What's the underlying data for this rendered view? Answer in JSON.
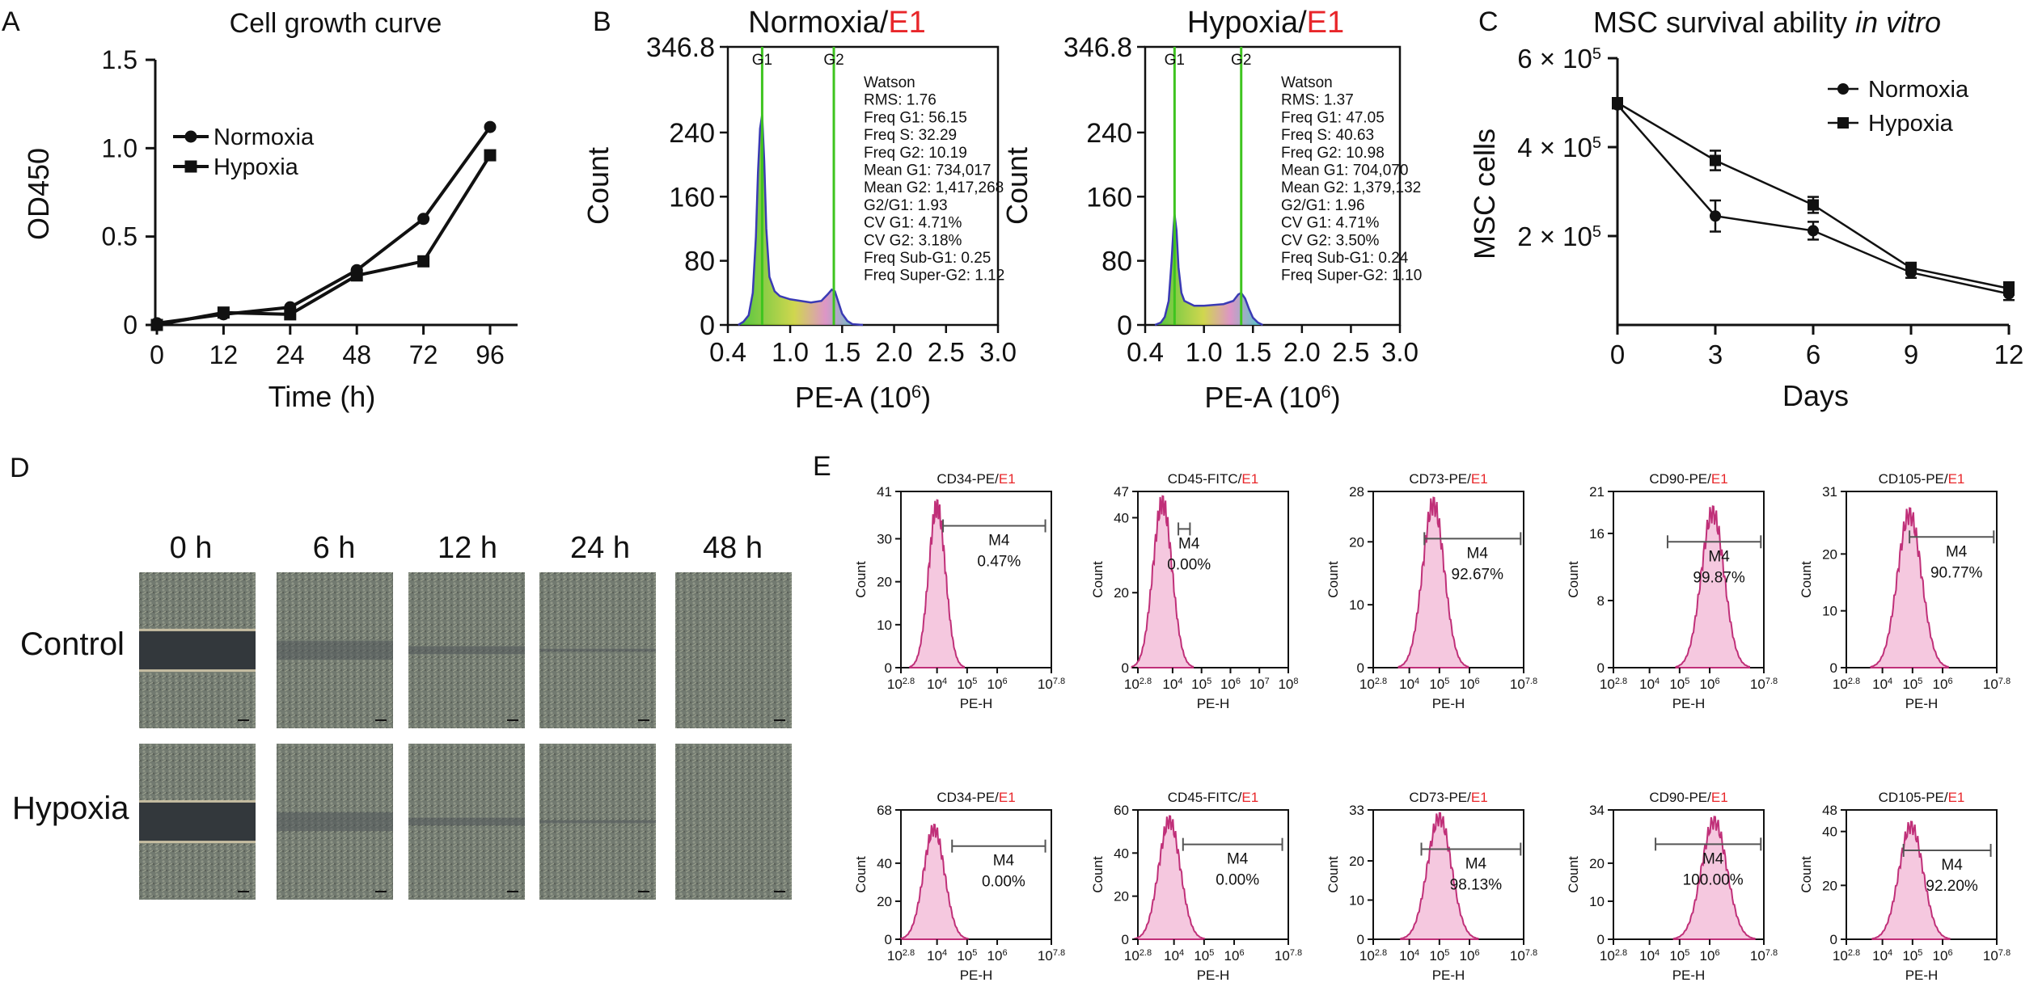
{
  "panel_letters": {
    "a": "A",
    "b": "B",
    "c": "C",
    "d": "D",
    "e": "E"
  },
  "accent_colors": {
    "red": "#e8262a",
    "green": "#3ec41f",
    "pink_fill": "#f5c8df",
    "pink_line": "#c03079"
  },
  "chart_data": [
    {
      "id": "growth",
      "type": "line",
      "title": "Cell growth curve",
      "xlabel": "Time (h)",
      "ylabel": "OD450",
      "x": [
        0,
        12,
        24,
        48,
        72,
        96
      ],
      "xtick_labels": [
        "0",
        "12",
        "24",
        "48",
        "72",
        "96"
      ],
      "ytick_labels": [
        "0",
        "0.5",
        "1.0",
        "1.5"
      ],
      "ylim": [
        0,
        1.5
      ],
      "legend": [
        "Normoxia",
        "Hypoxia"
      ],
      "legend_position": "top-left",
      "series": [
        {
          "name": "Normoxia",
          "marker": "circle",
          "values": [
            0.01,
            0.06,
            0.1,
            0.31,
            0.6,
            1.12
          ]
        },
        {
          "name": "Hypoxia",
          "marker": "square",
          "values": [
            0.0,
            0.07,
            0.06,
            0.28,
            0.36,
            0.96
          ]
        }
      ]
    },
    {
      "id": "cc_norm",
      "type": "area",
      "title": {
        "main": "Normoxia/",
        "accent": "E1"
      },
      "xlabel": "PE-A (10",
      "xlabel_exp": "6",
      "xlabel_end": ")",
      "ylabel": "Count",
      "ytick_labels": [
        "0",
        "80",
        "160",
        "240",
        "346.8"
      ],
      "ytick_values": [
        0,
        80,
        160,
        240,
        346.8
      ],
      "xtick_labels": [
        "0.4",
        "1.0",
        "1.5",
        "2.0",
        "2.5",
        "3.0"
      ],
      "xtick_values": [
        0.4,
        1.0,
        1.5,
        2.0,
        2.5,
        3.0
      ],
      "xlim": [
        0.4,
        3.0
      ],
      "ylim": [
        0,
        346.8
      ],
      "gate_labels": [
        "G1",
        "G2"
      ],
      "gates": [
        0.73,
        1.42
      ],
      "stats": [
        "Watson",
        "RMS: 1.76",
        "Freq G1: 56.15",
        "Freq S: 32.29",
        "Freq G2: 10.19",
        "Mean G1: 734,017",
        "Mean G2: 1,417,268",
        "G2/G1: 1.93",
        "CV G1: 4.71%",
        "CV G2: 3.18%",
        "Freq Sub-G1: 0.25",
        "Freq Super-G2: 1.12"
      ],
      "curve": {
        "x": [
          0.5,
          0.55,
          0.6,
          0.64,
          0.67,
          0.69,
          0.71,
          0.73,
          0.75,
          0.77,
          0.8,
          0.85,
          0.9,
          1.0,
          1.1,
          1.2,
          1.3,
          1.36,
          1.4,
          1.43,
          1.46,
          1.5,
          1.55,
          1.6,
          1.7
        ],
        "y": [
          0,
          4,
          12,
          40,
          110,
          190,
          245,
          262,
          205,
          120,
          60,
          42,
          36,
          32,
          30,
          28,
          30,
          38,
          44,
          42,
          30,
          14,
          5,
          1,
          0
        ]
      }
    },
    {
      "id": "cc_hyp",
      "type": "area",
      "title": {
        "main": "Hypoxia/",
        "accent": "E1"
      },
      "xlabel": "PE-A (10",
      "xlabel_exp": "6",
      "xlabel_end": ")",
      "ylabel": "Count",
      "ytick_labels": [
        "0",
        "80",
        "160",
        "240",
        "346.8"
      ],
      "ytick_values": [
        0,
        80,
        160,
        240,
        346.8
      ],
      "xtick_labels": [
        "0.4",
        "1.0",
        "1.5",
        "2.0",
        "2.5",
        "3.0"
      ],
      "xtick_values": [
        0.4,
        1.0,
        1.5,
        2.0,
        2.5,
        3.0
      ],
      "xlim": [
        0.4,
        3.0
      ],
      "ylim": [
        0,
        346.8
      ],
      "gate_labels": [
        "G1",
        "G2"
      ],
      "gates": [
        0.7,
        1.38
      ],
      "stats": [
        "Watson",
        "RMS: 1.37",
        "Freq G1: 47.05",
        "Freq S: 40.63",
        "Freq G2: 10.98",
        "Mean G1: 704,070",
        "Mean G2: 1,379,132",
        "G2/G1: 1.96",
        "CV G1: 4.71%",
        "CV G2: 3.50%",
        "Freq Sub-G1: 0.24",
        "Freq Super-G2: 1.10"
      ],
      "curve": {
        "x": [
          0.5,
          0.56,
          0.6,
          0.64,
          0.67,
          0.69,
          0.7,
          0.72,
          0.74,
          0.77,
          0.8,
          0.85,
          0.9,
          1.0,
          1.1,
          1.2,
          1.3,
          1.35,
          1.38,
          1.42,
          1.46,
          1.5,
          1.55,
          1.6
        ],
        "y": [
          0,
          3,
          10,
          30,
          80,
          122,
          138,
          118,
          72,
          40,
          30,
          27,
          24,
          24,
          25,
          26,
          30,
          38,
          40,
          33,
          20,
          9,
          3,
          0
        ]
      }
    },
    {
      "id": "survival",
      "type": "line",
      "title": {
        "main": "MSC survival ability ",
        "italic": "in vitro"
      },
      "xlabel": "Days",
      "ylabel": "MSC cells",
      "x": [
        0,
        3,
        6,
        9,
        12
      ],
      "xtick_labels": [
        "0",
        "3",
        "6",
        "9",
        "12"
      ],
      "xlim": [
        0,
        12
      ],
      "ylim": [
        0,
        600000
      ],
      "ytick_values": [
        200000,
        400000,
        600000
      ],
      "ytick_labels": [
        {
          "base": "2 × 10",
          "exp": "5"
        },
        {
          "base": "4 × 10",
          "exp": "5"
        },
        {
          "base": "6 × 10",
          "exp": "5"
        }
      ],
      "legend": [
        "Normoxia",
        "Hypoxia"
      ],
      "legend_position": "top-right",
      "series": [
        {
          "name": "Normoxia",
          "marker": "circle",
          "values": [
            495000,
            245000,
            212000,
            118000,
            70000
          ],
          "errors": [
            8000,
            35000,
            20000,
            12000,
            14000
          ]
        },
        {
          "name": "Hypoxia",
          "marker": "square",
          "values": [
            500000,
            370000,
            270000,
            128000,
            82000
          ],
          "errors": [
            8000,
            22000,
            18000,
            12000,
            14000
          ]
        }
      ]
    },
    {
      "id": "flow",
      "type": "area",
      "xlabel": "PE-H",
      "ylabel": "Count",
      "gate_label": "M4",
      "panels": [
        {
          "marker": "CD34-PE/",
          "accent": "E1",
          "ytick_labels": [
            "0",
            "10",
            "20",
            "30",
            "41"
          ],
          "ytick_values": [
            0,
            10,
            20,
            30,
            41
          ],
          "ylim": [
            0,
            41
          ],
          "xtick_labels": [
            "10",
            "10",
            "10",
            "10",
            "10"
          ],
          "xtick_exps": [
            "2.8",
            "4",
            "5",
            "6",
            "7.8"
          ],
          "xtick_values": [
            2.8,
            4,
            5,
            6,
            7.8
          ],
          "xlim": [
            2.8,
            7.8
          ],
          "gate": [
            4.2,
            7.6
          ],
          "gate_y": 33,
          "percent": "0.47%",
          "peak": [
            4.0,
            0.28,
            37.5,
            37
          ]
        },
        {
          "marker": "CD45-FITC/",
          "accent": "E1",
          "ytick_labels": [
            "0",
            "20",
            "40",
            "47"
          ],
          "ytick_values": [
            0,
            20,
            40,
            47
          ],
          "ylim": [
            0,
            47
          ],
          "xtick_labels": [
            "10",
            "10",
            "10",
            "10",
            "10",
            "10"
          ],
          "xtick_exps": [
            "2.8",
            "4",
            "5",
            "6",
            "7",
            "8"
          ],
          "xtick_values": [
            2.8,
            4,
            5,
            6,
            7,
            8
          ],
          "xlim": [
            2.8,
            8
          ],
          "gate": [
            4.2,
            4.6
          ],
          "gate_y": 37,
          "percent": "0.00%",
          "peak": [
            3.65,
            0.33,
            44,
            39
          ]
        },
        {
          "marker": "CD73-PE/",
          "accent": "E1",
          "ytick_labels": [
            "0",
            "10",
            "20",
            "28"
          ],
          "ytick_values": [
            0,
            10,
            20,
            28
          ],
          "ylim": [
            0,
            28
          ],
          "xtick_labels": [
            "10",
            "10",
            "10",
            "10",
            "10"
          ],
          "xtick_exps": [
            "2.8",
            "4",
            "5",
            "6",
            "7.8"
          ],
          "xtick_values": [
            2.8,
            4,
            5,
            6,
            7.8
          ],
          "xlim": [
            2.8,
            7.8
          ],
          "gate": [
            4.5,
            7.7
          ],
          "gate_y": 20.5,
          "percent": "92.67%",
          "peak": [
            4.8,
            0.36,
            26,
            25
          ]
        },
        {
          "marker": "CD90-PE/",
          "accent": "E1",
          "ytick_labels": [
            "0",
            "8",
            "16",
            "21"
          ],
          "ytick_values": [
            0,
            8,
            16,
            21
          ],
          "ylim": [
            0,
            21
          ],
          "xtick_labels": [
            "10",
            "10",
            "10",
            "10",
            "10"
          ],
          "xtick_exps": [
            "2.8",
            "4",
            "5",
            "6",
            "7.8"
          ],
          "xtick_values": [
            2.8,
            4,
            5,
            6,
            7.8
          ],
          "xlim": [
            2.8,
            7.8
          ],
          "gate": [
            4.6,
            7.7
          ],
          "gate_y": 15,
          "percent": "99.87%",
          "peak": [
            6.1,
            0.38,
            18.5,
            18
          ]
        },
        {
          "marker": "CD105-PE/",
          "accent": "E1",
          "ytick_labels": [
            "0",
            "10",
            "20",
            "31"
          ],
          "ytick_values": [
            0,
            10,
            20,
            31
          ],
          "ylim": [
            0,
            31
          ],
          "xtick_labels": [
            "10",
            "10",
            "10",
            "10",
            "10"
          ],
          "xtick_exps": [
            "2.8",
            "4",
            "5",
            "6",
            "7.8"
          ],
          "xtick_values": [
            2.8,
            4,
            5,
            6,
            7.8
          ],
          "xlim": [
            2.8,
            7.8
          ],
          "gate": [
            4.9,
            7.7
          ],
          "gate_y": 23,
          "percent": "90.77%",
          "peak": [
            4.9,
            0.4,
            27,
            26
          ]
        },
        {
          "marker": "CD34-PE/",
          "accent": "E1",
          "ytick_labels": [
            "0",
            "20",
            "40",
            "68"
          ],
          "ytick_values": [
            0,
            20,
            40,
            68
          ],
          "ylim": [
            0,
            68
          ],
          "xtick_labels": [
            "10",
            "10",
            "10",
            "10",
            "10"
          ],
          "xtick_exps": [
            "2.8",
            "4",
            "5",
            "6",
            "7.8"
          ],
          "xtick_values": [
            2.8,
            4,
            5,
            6,
            7.8
          ],
          "xlim": [
            2.8,
            7.8
          ],
          "gate": [
            4.5,
            7.6
          ],
          "gate_y": 49,
          "percent": "0.00%",
          "peak": [
            3.9,
            0.35,
            58,
            57
          ]
        },
        {
          "marker": "CD45-FITC/",
          "accent": "E1",
          "ytick_labels": [
            "0",
            "20",
            "40",
            "60"
          ],
          "ytick_values": [
            0,
            20,
            40,
            60
          ],
          "ylim": [
            0,
            60
          ],
          "xtick_labels": [
            "10",
            "10",
            "10",
            "10",
            "10"
          ],
          "xtick_exps": [
            "2.8",
            "4",
            "5",
            "6",
            "7.8"
          ],
          "xtick_values": [
            2.8,
            4,
            5,
            6,
            7.8
          ],
          "xlim": [
            2.8,
            7.8
          ],
          "gate": [
            4.3,
            7.6
          ],
          "gate_y": 44,
          "percent": "0.00%",
          "peak": [
            3.85,
            0.36,
            55,
            53
          ]
        },
        {
          "marker": "CD73-PE/",
          "accent": "E1",
          "ytick_labels": [
            "0",
            "10",
            "20",
            "33"
          ],
          "ytick_values": [
            0,
            10,
            20,
            33
          ],
          "ylim": [
            0,
            33
          ],
          "xtick_labels": [
            "10",
            "10",
            "10",
            "10",
            "10"
          ],
          "xtick_exps": [
            "2.8",
            "4",
            "5",
            "6",
            "7.8"
          ],
          "xtick_values": [
            2.8,
            4,
            5,
            6,
            7.8
          ],
          "xlim": [
            2.8,
            7.8
          ],
          "gate": [
            4.4,
            7.7
          ],
          "gate_y": 23,
          "percent": "98.13%",
          "peak": [
            5.0,
            0.4,
            31,
            30
          ]
        },
        {
          "marker": "CD90-PE/",
          "accent": "E1",
          "ytick_labels": [
            "0",
            "10",
            "20",
            "34"
          ],
          "ytick_values": [
            0,
            10,
            20,
            34
          ],
          "ylim": [
            0,
            34
          ],
          "xtick_labels": [
            "10",
            "10",
            "10",
            "10",
            "10"
          ],
          "xtick_exps": [
            "2.8",
            "4",
            "5",
            "6",
            "7.8"
          ],
          "xtick_values": [
            2.8,
            4,
            5,
            6,
            7.8
          ],
          "xlim": [
            2.8,
            7.8
          ],
          "gate": [
            4.2,
            7.7
          ],
          "gate_y": 25,
          "percent": "100.00%",
          "peak": [
            6.15,
            0.42,
            31,
            30
          ]
        },
        {
          "marker": "CD105-PE/",
          "accent": "E1",
          "ytick_labels": [
            "0",
            "20",
            "40",
            "48"
          ],
          "ytick_values": [
            0,
            20,
            40,
            48
          ],
          "ylim": [
            0,
            48
          ],
          "xtick_labels": [
            "10",
            "10",
            "10",
            "10",
            "10"
          ],
          "xtick_exps": [
            "2.8",
            "4",
            "5",
            "6",
            "7.8"
          ],
          "xtick_values": [
            2.8,
            4,
            5,
            6,
            7.8
          ],
          "xlim": [
            2.8,
            7.8
          ],
          "gate": [
            4.7,
            7.6
          ],
          "gate_y": 33,
          "percent": "92.20%",
          "peak": [
            4.95,
            0.4,
            42,
            41
          ]
        }
      ]
    }
  ],
  "wound_healing": {
    "time_labels": [
      "0 h",
      "6 h",
      "12 h",
      "24 h",
      "48 h"
    ],
    "row_labels": [
      "Control",
      "Hypoxia"
    ],
    "colors": {
      "cells": "#6f766b",
      "gap": "#33383c",
      "edge": "#c7bea2",
      "scale_bar": "#111111"
    }
  }
}
